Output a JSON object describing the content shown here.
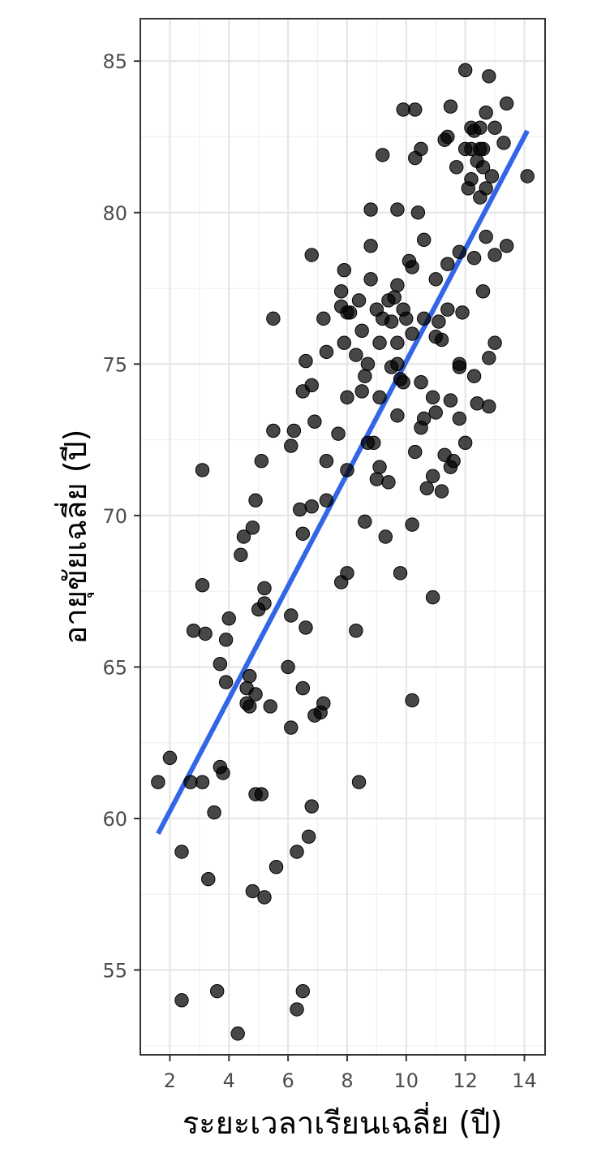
{
  "chart_data": {
    "type": "scatter",
    "title": "",
    "xlabel": "ระยะเวลาเรียนเฉลี่ย (ปี)",
    "ylabel": "อายุขัยเฉลี่ย (ปี)",
    "xlim": [
      1.0,
      14.7
    ],
    "ylim": [
      52.2,
      86.4
    ],
    "xticks": [
      2,
      4,
      6,
      8,
      10,
      12,
      14
    ],
    "yticks": [
      55,
      60,
      65,
      70,
      75,
      80,
      85
    ],
    "grid": true,
    "legend": "none",
    "colors": {
      "points": "#000000",
      "fit_line": "#3366e6"
    },
    "fit_line": {
      "x": [
        1.6,
        14.1
      ],
      "y": [
        59.5,
        82.7
      ]
    },
    "points": [
      [
        1.6,
        61.2
      ],
      [
        2.0,
        62.0
      ],
      [
        2.4,
        58.9
      ],
      [
        2.4,
        54.0
      ],
      [
        2.7,
        61.2
      ],
      [
        2.8,
        66.2
      ],
      [
        3.1,
        61.2
      ],
      [
        3.1,
        71.5
      ],
      [
        3.1,
        67.7
      ],
      [
        3.2,
        66.1
      ],
      [
        3.3,
        58.0
      ],
      [
        3.5,
        60.2
      ],
      [
        3.6,
        54.3
      ],
      [
        3.7,
        65.1
      ],
      [
        3.7,
        61.7
      ],
      [
        3.8,
        61.5
      ],
      [
        3.9,
        65.9
      ],
      [
        3.9,
        64.5
      ],
      [
        4.0,
        66.6
      ],
      [
        4.3,
        52.9
      ],
      [
        4.4,
        68.7
      ],
      [
        4.5,
        69.3
      ],
      [
        4.6,
        64.3
      ],
      [
        4.6,
        63.8
      ],
      [
        4.7,
        64.7
      ],
      [
        4.7,
        63.7
      ],
      [
        4.8,
        69.6
      ],
      [
        4.8,
        57.6
      ],
      [
        4.9,
        70.5
      ],
      [
        4.9,
        64.1
      ],
      [
        4.9,
        60.8
      ],
      [
        5.0,
        66.9
      ],
      [
        5.1,
        71.8
      ],
      [
        5.1,
        60.8
      ],
      [
        5.2,
        67.6
      ],
      [
        5.2,
        67.1
      ],
      [
        5.2,
        57.4
      ],
      [
        5.4,
        63.7
      ],
      [
        5.5,
        76.5
      ],
      [
        5.5,
        72.8
      ],
      [
        5.6,
        58.4
      ],
      [
        6.0,
        65.0
      ],
      [
        6.1,
        72.3
      ],
      [
        6.1,
        66.7
      ],
      [
        6.1,
        63.0
      ],
      [
        6.2,
        72.8
      ],
      [
        6.3,
        58.9
      ],
      [
        6.3,
        53.7
      ],
      [
        6.4,
        70.2
      ],
      [
        6.5,
        74.1
      ],
      [
        6.5,
        69.4
      ],
      [
        6.5,
        64.3
      ],
      [
        6.5,
        54.3
      ],
      [
        6.6,
        75.1
      ],
      [
        6.6,
        66.3
      ],
      [
        6.7,
        59.4
      ],
      [
        6.8,
        74.3
      ],
      [
        6.8,
        70.3
      ],
      [
        6.8,
        60.4
      ],
      [
        6.8,
        78.6
      ],
      [
        6.9,
        73.1
      ],
      [
        6.9,
        63.4
      ],
      [
        7.1,
        63.5
      ],
      [
        7.2,
        76.5
      ],
      [
        7.2,
        63.8
      ],
      [
        7.3,
        75.4
      ],
      [
        7.3,
        71.8
      ],
      [
        7.3,
        70.5
      ],
      [
        7.7,
        72.7
      ],
      [
        7.8,
        67.8
      ],
      [
        7.8,
        77.4
      ],
      [
        7.8,
        76.9
      ],
      [
        7.9,
        78.1
      ],
      [
        7.9,
        75.7
      ],
      [
        8.0,
        76.7
      ],
      [
        8.0,
        73.9
      ],
      [
        8.0,
        71.5
      ],
      [
        8.0,
        68.1
      ],
      [
        8.1,
        76.7
      ],
      [
        8.3,
        75.3
      ],
      [
        8.3,
        66.2
      ],
      [
        8.4,
        77.1
      ],
      [
        8.4,
        61.2
      ],
      [
        8.5,
        76.1
      ],
      [
        8.5,
        74.1
      ],
      [
        8.6,
        74.6
      ],
      [
        8.6,
        69.8
      ],
      [
        8.7,
        75.0
      ],
      [
        8.7,
        72.4
      ],
      [
        8.8,
        80.1
      ],
      [
        8.8,
        78.9
      ],
      [
        8.8,
        77.8
      ],
      [
        8.9,
        72.4
      ],
      [
        9.0,
        76.8
      ],
      [
        9.0,
        71.2
      ],
      [
        9.1,
        75.7
      ],
      [
        9.1,
        73.9
      ],
      [
        9.1,
        71.6
      ],
      [
        9.2,
        81.9
      ],
      [
        9.2,
        76.5
      ],
      [
        9.3,
        69.3
      ],
      [
        9.4,
        77.1
      ],
      [
        9.4,
        71.1
      ],
      [
        9.5,
        74.9
      ],
      [
        9.5,
        76.4
      ],
      [
        9.6,
        77.2
      ],
      [
        9.7,
        80.1
      ],
      [
        9.7,
        77.6
      ],
      [
        9.7,
        75.7
      ],
      [
        9.7,
        75.0
      ],
      [
        9.7,
        73.3
      ],
      [
        9.8,
        74.5
      ],
      [
        9.8,
        68.1
      ],
      [
        9.9,
        83.4
      ],
      [
        9.9,
        76.8
      ],
      [
        9.9,
        74.4
      ],
      [
        10.0,
        76.5
      ],
      [
        10.1,
        78.4
      ],
      [
        10.2,
        78.2
      ],
      [
        10.2,
        76.0
      ],
      [
        10.2,
        69.7
      ],
      [
        10.2,
        63.9
      ],
      [
        10.3,
        83.4
      ],
      [
        10.3,
        81.8
      ],
      [
        10.3,
        72.1
      ],
      [
        10.4,
        80.0
      ],
      [
        10.5,
        82.1
      ],
      [
        10.5,
        74.4
      ],
      [
        10.5,
        72.9
      ],
      [
        10.6,
        79.1
      ],
      [
        10.6,
        76.5
      ],
      [
        10.6,
        73.2
      ],
      [
        10.7,
        70.9
      ],
      [
        10.9,
        73.9
      ],
      [
        10.9,
        71.3
      ],
      [
        10.9,
        67.3
      ],
      [
        11.0,
        77.8
      ],
      [
        11.0,
        75.9
      ],
      [
        11.0,
        73.4
      ],
      [
        11.1,
        76.4
      ],
      [
        11.2,
        75.8
      ],
      [
        11.2,
        70.8
      ],
      [
        11.3,
        82.4
      ],
      [
        11.3,
        72.0
      ],
      [
        11.4,
        82.5
      ],
      [
        11.4,
        78.3
      ],
      [
        11.4,
        76.8
      ],
      [
        11.5,
        83.5
      ],
      [
        11.5,
        73.8
      ],
      [
        11.5,
        71.6
      ],
      [
        11.6,
        71.8
      ],
      [
        11.7,
        81.5
      ],
      [
        11.8,
        78.7
      ],
      [
        11.8,
        75.0
      ],
      [
        11.8,
        74.9
      ],
      [
        11.8,
        73.2
      ],
      [
        11.9,
        76.7
      ],
      [
        12.0,
        84.7
      ],
      [
        12.0,
        82.1
      ],
      [
        12.0,
        72.4
      ],
      [
        12.1,
        80.8
      ],
      [
        12.2,
        82.8
      ],
      [
        12.2,
        82.1
      ],
      [
        12.2,
        81.1
      ],
      [
        12.3,
        78.5
      ],
      [
        12.3,
        74.6
      ],
      [
        12.3,
        82.7
      ],
      [
        12.4,
        81.7
      ],
      [
        12.4,
        73.7
      ],
      [
        12.5,
        82.1
      ],
      [
        12.5,
        80.5
      ],
      [
        12.5,
        82.8
      ],
      [
        12.6,
        81.5
      ],
      [
        12.6,
        77.4
      ],
      [
        12.6,
        82.1
      ],
      [
        12.7,
        83.3
      ],
      [
        12.7,
        80.8
      ],
      [
        12.7,
        79.2
      ],
      [
        12.8,
        84.5
      ],
      [
        12.8,
        75.2
      ],
      [
        12.8,
        73.6
      ],
      [
        12.9,
        81.2
      ],
      [
        13.0,
        82.8
      ],
      [
        13.0,
        78.6
      ],
      [
        13.0,
        75.7
      ],
      [
        13.3,
        82.3
      ],
      [
        13.4,
        83.6
      ],
      [
        13.4,
        78.9
      ],
      [
        14.1,
        81.2
      ]
    ]
  }
}
